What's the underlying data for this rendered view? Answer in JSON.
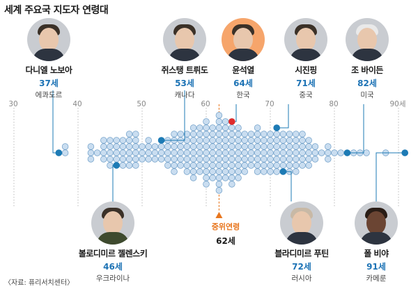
{
  "title": "세계 주요국 지도자 연령대",
  "source": "〈자료: 퓨리서치센터〉",
  "median": {
    "label": "중위연령",
    "value_label": "62세",
    "value": 62
  },
  "colors": {
    "dot": "#c9ddf0",
    "dot_stroke": "#6d9dc7",
    "highlight": "#1d7bb5",
    "korea": "#e02b2b",
    "median": "#e8761e",
    "age_text": "#1d73b5"
  },
  "leaders": [
    {
      "name": "다니엘 노보아",
      "age_label": "37세",
      "country": "에콰도르",
      "age": 37
    },
    {
      "name": "쥐스탱 트뤼도",
      "age_label": "53세",
      "country": "캐나다",
      "age": 53
    },
    {
      "name": "윤석열",
      "age_label": "64세",
      "country": "한국",
      "age": 64
    },
    {
      "name": "시진핑",
      "age_label": "71세",
      "country": "중국",
      "age": 71
    },
    {
      "name": "조 바이든",
      "age_label": "82세",
      "country": "미국",
      "age": 82
    },
    {
      "name": "볼로디미르 젤렌스키",
      "age_label": "46세",
      "country": "우크라이나",
      "age": 46
    },
    {
      "name": "블라디미르 푸틴",
      "age_label": "72세",
      "country": "러시아",
      "age": 72
    },
    {
      "name": "폴 비야",
      "age_label": "91세",
      "country": "카메룬",
      "age": 91
    }
  ],
  "chart_data": {
    "type": "scatter",
    "title": "세계 주요국 지도자 연령대",
    "xlabel": "",
    "ylabel": "",
    "xlim": [
      30,
      92
    ],
    "x_ticks": [
      "30",
      "40",
      "50",
      "60",
      "70",
      "80",
      "90세"
    ],
    "x_tick_values": [
      30,
      40,
      50,
      60,
      70,
      80,
      90
    ],
    "grid": true,
    "median": 62,
    "age_distribution": [
      {
        "age": 37,
        "count": 1
      },
      {
        "age": 38,
        "count": 2
      },
      {
        "age": 42,
        "count": 3
      },
      {
        "age": 43,
        "count": 1
      },
      {
        "age": 44,
        "count": 4
      },
      {
        "age": 45,
        "count": 5
      },
      {
        "age": 46,
        "count": 5
      },
      {
        "age": 47,
        "count": 5
      },
      {
        "age": 48,
        "count": 6
      },
      {
        "age": 49,
        "count": 6
      },
      {
        "age": 50,
        "count": 3
      },
      {
        "age": 51,
        "count": 4
      },
      {
        "age": 52,
        "count": 3
      },
      {
        "age": 53,
        "count": 4
      },
      {
        "age": 54,
        "count": 5
      },
      {
        "age": 55,
        "count": 7
      },
      {
        "age": 56,
        "count": 6
      },
      {
        "age": 57,
        "count": 7
      },
      {
        "age": 58,
        "count": 9
      },
      {
        "age": 59,
        "count": 8
      },
      {
        "age": 60,
        "count": 11
      },
      {
        "age": 61,
        "count": 9
      },
      {
        "age": 62,
        "count": 13
      },
      {
        "age": 63,
        "count": 10
      },
      {
        "age": 64,
        "count": 11
      },
      {
        "age": 65,
        "count": 9
      },
      {
        "age": 66,
        "count": 7
      },
      {
        "age": 67,
        "count": 6
      },
      {
        "age": 68,
        "count": 8
      },
      {
        "age": 69,
        "count": 7
      },
      {
        "age": 70,
        "count": 7
      },
      {
        "age": 71,
        "count": 8
      },
      {
        "age": 72,
        "count": 7
      },
      {
        "age": 73,
        "count": 7
      },
      {
        "age": 74,
        "count": 7
      },
      {
        "age": 75,
        "count": 6
      },
      {
        "age": 76,
        "count": 5
      },
      {
        "age": 77,
        "count": 3
      },
      {
        "age": 78,
        "count": 1
      },
      {
        "age": 79,
        "count": 3
      },
      {
        "age": 80,
        "count": 1
      },
      {
        "age": 81,
        "count": 1
      },
      {
        "age": 82,
        "count": 1
      },
      {
        "age": 83,
        "count": 1
      },
      {
        "age": 84,
        "count": 1
      },
      {
        "age": 85,
        "count": 1
      },
      {
        "age": 88,
        "count": 1
      },
      {
        "age": 91,
        "count": 1
      }
    ],
    "highlighted_points": [
      {
        "label": "다니엘 노보아",
        "age": 37
      },
      {
        "label": "볼로디미르 젤렌스키",
        "age": 46
      },
      {
        "label": "쥐스탱 트뤼도",
        "age": 53
      },
      {
        "label": "윤석열",
        "age": 64
      },
      {
        "label": "시진핑",
        "age": 71
      },
      {
        "label": "블라디미르 푸틴",
        "age": 72
      },
      {
        "label": "조 바이든",
        "age": 82
      },
      {
        "label": "폴 비야",
        "age": 91
      }
    ]
  }
}
